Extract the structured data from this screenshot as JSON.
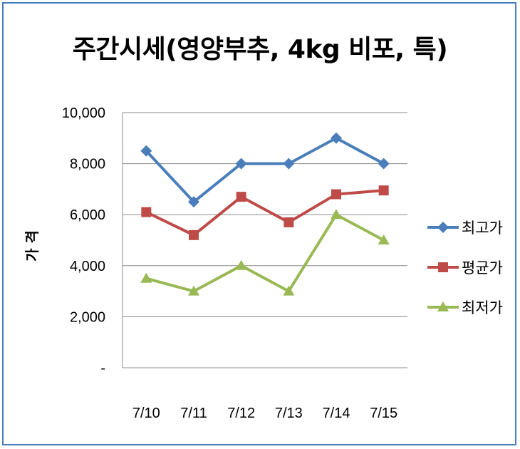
{
  "chart_data": {
    "type": "line",
    "title": "주간시세(영양부추, 4kg 비포, 특)",
    "ylabel": "가 격",
    "xlabel": "",
    "categories": [
      "7/10",
      "7/11",
      "7/12",
      "7/13",
      "7/14",
      "7/15"
    ],
    "ylim": [
      0,
      10000
    ],
    "yticks": [
      0,
      2000,
      4000,
      6000,
      8000,
      10000
    ],
    "ytick_labels": [
      "-",
      "2,000",
      "4,000",
      "6,000",
      "8,000",
      "10,000"
    ],
    "grid": true,
    "legend_position": "right",
    "series": [
      {
        "name": "최고가",
        "marker": "diamond",
        "color": "#4a7ebb",
        "values": [
          8500,
          6500,
          8000,
          8000,
          9000,
          8000
        ]
      },
      {
        "name": "평균가",
        "marker": "square",
        "color": "#be4b48",
        "values": [
          6100,
          5200,
          6700,
          5700,
          6800,
          6950
        ]
      },
      {
        "name": "최저가",
        "marker": "triangle",
        "color": "#98b954",
        "values": [
          3500,
          3000,
          4000,
          3000,
          6000,
          5000
        ]
      }
    ]
  }
}
